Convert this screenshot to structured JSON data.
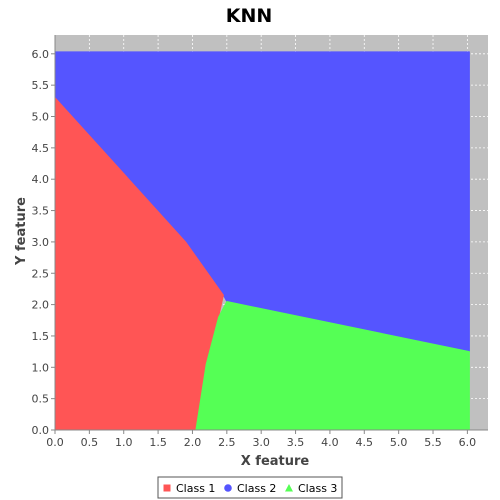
{
  "chart_data": {
    "type": "area",
    "title": "KNN",
    "xlabel": "X feature",
    "ylabel": "Y feature",
    "xlim": [
      0,
      6.3
    ],
    "ylim": [
      0,
      6.3
    ],
    "xticks": [
      "0.0",
      "0.5",
      "1.0",
      "1.5",
      "2.0",
      "2.5",
      "3.0",
      "3.5",
      "4.0",
      "4.5",
      "5.0",
      "5.5",
      "6.0"
    ],
    "yticks": [
      "0.0",
      "0.5",
      "1.0",
      "1.5",
      "2.0",
      "2.5",
      "3.0",
      "3.5",
      "4.0",
      "4.5",
      "5.0",
      "5.5",
      "6.0"
    ],
    "grid": true,
    "legend_position": "bottom",
    "plot_background": "#c0c0c0",
    "series": [
      {
        "name": "Class 2",
        "color": "#5555ff",
        "marker": "circle",
        "region": [
          [
            0,
            6.03
          ],
          [
            6.03,
            6.03
          ],
          [
            6.03,
            1.25
          ],
          [
            2.5,
            2.05
          ],
          [
            2.45,
            2.15
          ],
          [
            1.9,
            3.0
          ],
          [
            0,
            5.3
          ]
        ]
      },
      {
        "name": "Class 1",
        "color": "#ff5555",
        "marker": "square",
        "region": [
          [
            0,
            0
          ],
          [
            2.05,
            0
          ],
          [
            2.2,
            1.05
          ],
          [
            2.38,
            1.8
          ],
          [
            2.45,
            2.15
          ],
          [
            1.9,
            3.0
          ],
          [
            0,
            5.3
          ]
        ]
      },
      {
        "name": "Class 3",
        "color": "#55ff55",
        "marker": "triangle",
        "region": [
          [
            2.05,
            0
          ],
          [
            6.03,
            0
          ],
          [
            6.03,
            1.25
          ],
          [
            2.5,
            2.05
          ],
          [
            2.38,
            1.8
          ],
          [
            2.2,
            1.05
          ]
        ]
      }
    ]
  }
}
